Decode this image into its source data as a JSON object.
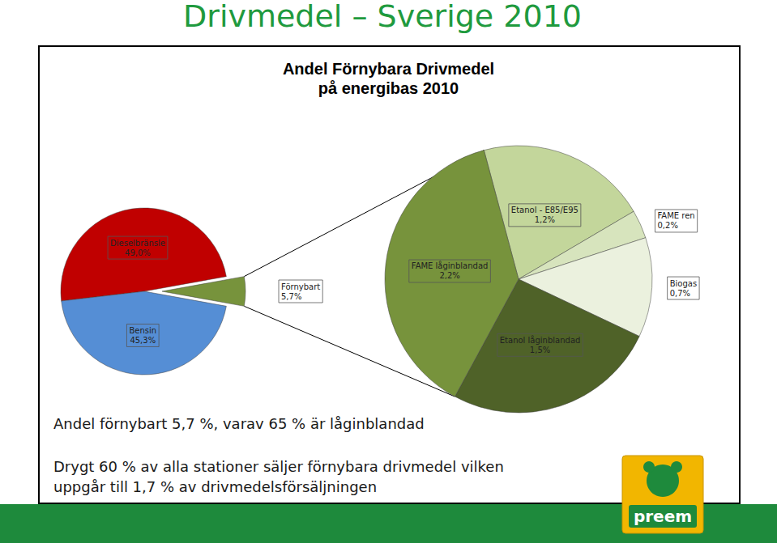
{
  "header": {
    "title": "Drivmedel – Sverige 2010"
  },
  "chart_data": [
    {
      "type": "pie",
      "title": "Andel Förnybara Drivmedel\npå energibas 2010",
      "categories": [
        "Dieselbränsle",
        "Förnybart",
        "Bensin"
      ],
      "values": [
        49.0,
        5.7,
        45.3
      ],
      "value_labels": [
        "49,0%",
        "5,7%",
        "45,3%"
      ],
      "colors": [
        "#c00000",
        "#77933c",
        "#558ed5"
      ],
      "data_labels": true
    },
    {
      "type": "pie",
      "categories": [
        "Etanol - E85/E95",
        "FAME ren",
        "Biogas",
        "Etanol låginblandad",
        "FAME låginblandad"
      ],
      "values": [
        1.2,
        0.2,
        0.7,
        1.5,
        2.2
      ],
      "value_labels": [
        "1,2%",
        "0,2%",
        "0,7%",
        "1,5%",
        "2,2%"
      ],
      "colors": [
        "#c3d69b",
        "#d7e4bd",
        "#ebf1de",
        "#4f6228",
        "#77933c"
      ],
      "data_labels": true
    }
  ],
  "notes": [
    "Andel förnybart 5,7 %, varav 65 % är låginblandad",
    "Drygt 60 % av alla stationer säljer förnybara drivmedel vilken\nuppgår till 1,7 % av drivmedelsförsäljningen"
  ],
  "logo": "preem"
}
